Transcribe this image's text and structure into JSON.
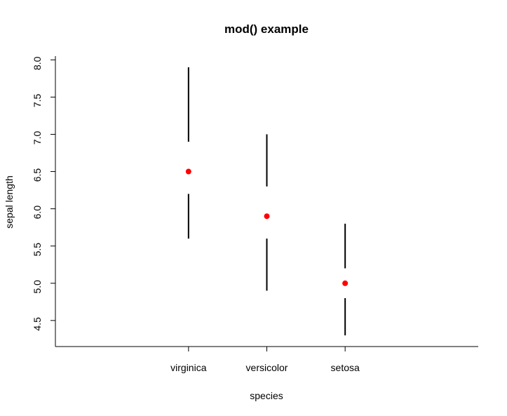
{
  "chart_data": {
    "type": "scatter",
    "title": "mod() example",
    "xlabel": "species",
    "ylabel": "sepal length",
    "categories": [
      "virginica",
      "versicolor",
      "setosa"
    ],
    "xlim": [
      -0.7,
      4.7
    ],
    "ylim": [
      4.15,
      8.05
    ],
    "yticks": [
      "4.5",
      "5.0",
      "5.5",
      "6.0",
      "6.5",
      "7.0",
      "7.5",
      "8.0"
    ],
    "series": [
      {
        "points": [
          {
            "category": "virginica",
            "min": 5.6,
            "lower": 6.2,
            "median": 6.5,
            "upper": 6.9,
            "max": 7.9
          },
          {
            "category": "versicolor",
            "min": 4.9,
            "lower": 5.6,
            "median": 5.9,
            "upper": 6.3,
            "max": 7.0
          },
          {
            "category": "setosa",
            "min": 4.3,
            "lower": 4.8,
            "median": 5.0,
            "upper": 5.2,
            "max": 5.8
          }
        ]
      }
    ],
    "point_color": "#ff0000",
    "line_color": "#000000",
    "grid": false,
    "legend": "none"
  }
}
